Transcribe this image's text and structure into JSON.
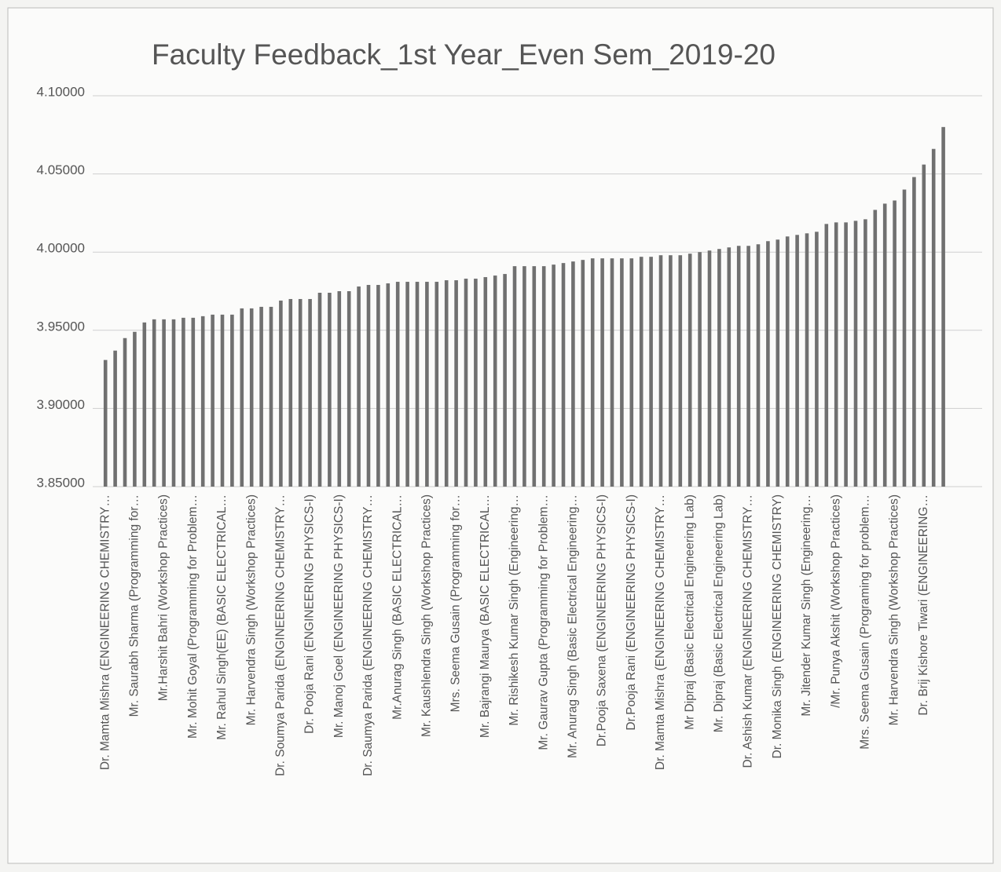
{
  "chart_data": {
    "type": "bar",
    "title": "Faculty Feedback_1st Year_Even Sem_2019-20",
    "color": "#707070",
    "grid": true,
    "ylim": [
      3.85,
      4.1
    ],
    "yticks": [
      {
        "value": 3.85,
        "label": "3.85000"
      },
      {
        "value": 3.9,
        "label": "3.90000"
      },
      {
        "value": 3.95,
        "label": "3.95000"
      },
      {
        "value": 4.0,
        "label": "4.00000"
      },
      {
        "value": 4.05,
        "label": "4.05000"
      },
      {
        "value": 4.1,
        "label": "4.10000"
      }
    ],
    "categories": [
      "Dr. Mamta Mishra (ENGINEERING CHEMISTRY…",
      null,
      null,
      "Mr. Saurabh Sharma (Programming for…",
      null,
      null,
      "Mr.Harshit Bahri (Workshop Practices)",
      null,
      null,
      "Mr. Mohit Goyal  (Programming for Problem…",
      null,
      null,
      "Mr. Rahul Singh(EE) (BASIC ELECTRICAL…",
      null,
      null,
      "Mr. Harvendra Singh  (Workshop Practices)",
      null,
      null,
      "Dr. Soumya Parida (ENGINEERING CHEMISTRY…",
      null,
      null,
      "Dr. Pooja Rani (ENGINEERING PHYSICS-I)",
      null,
      null,
      "Mr. Manoj Goel (ENGINEERING PHYSICS-I)",
      null,
      null,
      "Dr. Saumya Parida (ENGINEERING CHEMISTRY…",
      null,
      null,
      "Mr.Anurag Singh (BASIC ELECTRICAL…",
      null,
      null,
      "Mr. Kaushlendra Singh  (Workshop Practices)",
      null,
      null,
      "Mrs. Seema Gusain  (Programming for…",
      null,
      null,
      "Mr. Bajrangi Maurya (BASIC ELECTRICAL…",
      null,
      null,
      "Mr. Rishikesh Kumar Singh (Engineering…",
      null,
      null,
      "Mr. Gaurav Gupta (Programming for Problem…",
      null,
      null,
      "Mr. Anurag Singh (Basic Electrical Engineering…",
      null,
      null,
      "Dr.Pooja Saxena (ENGINEERING PHYSICS-I)",
      null,
      null,
      "Dr.Pooja Rani (ENGINEERING PHYSICS-I)",
      null,
      null,
      "Dr. Mamta Mishra (ENGINEERING CHEMISTRY…",
      null,
      null,
      "Mr Dipraj (Basic Electrical Engineering Lab)",
      null,
      null,
      "Mr. Dipraj (Basic Electrical Engineering Lab)",
      null,
      null,
      "Dr. Ashish Kumar  (ENGINEERING CHEMISTRY…",
      null,
      null,
      "Dr. Monika Singh (ENGINEERING CHEMISTRY)",
      null,
      null,
      "Mr. Jitender Kumar Singh  (Engineering…",
      null,
      null,
      "/Mr. Punya Akshit (Workshop Practices)",
      null,
      null,
      "Mrs. Seema Gusain (Programing for problem…",
      null,
      null,
      "Mr. Harvendra Singh (Workshop Practices)",
      null,
      null,
      "Dr. Brij Kishore Tiwari (ENGINEERING…",
      null,
      null
    ],
    "values": [
      3.931,
      3.937,
      3.945,
      3.949,
      3.955,
      3.957,
      3.957,
      3.957,
      3.958,
      3.958,
      3.959,
      3.96,
      3.96,
      3.96,
      3.964,
      3.964,
      3.965,
      3.965,
      3.969,
      3.97,
      3.97,
      3.97,
      3.974,
      3.974,
      3.975,
      3.975,
      3.978,
      3.979,
      3.979,
      3.98,
      3.981,
      3.981,
      3.981,
      3.981,
      3.981,
      3.982,
      3.982,
      3.983,
      3.983,
      3.984,
      3.985,
      3.986,
      3.991,
      3.991,
      3.991,
      3.991,
      3.992,
      3.993,
      3.994,
      3.995,
      3.996,
      3.996,
      3.996,
      3.996,
      3.996,
      3.997,
      3.997,
      3.998,
      3.998,
      3.998,
      3.999,
      4.0,
      4.001,
      4.002,
      4.003,
      4.004,
      4.004,
      4.005,
      4.007,
      4.008,
      4.01,
      4.011,
      4.012,
      4.013,
      4.018,
      4.019,
      4.019,
      4.02,
      4.021,
      4.027,
      4.031,
      4.033,
      4.04,
      4.048,
      4.056,
      4.066,
      4.08
    ]
  }
}
